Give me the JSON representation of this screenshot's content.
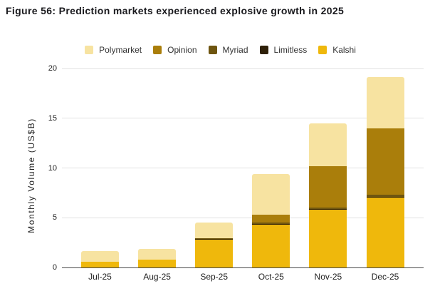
{
  "figure": {
    "title": "Figure 56: Prediction markets experienced explosive growth in 2025"
  },
  "chart_data": {
    "type": "bar",
    "stacked": true,
    "title": "Figure 56: Prediction markets experienced explosive growth in 2025",
    "categories": [
      "Jul-25",
      "Aug-25",
      "Sep-25",
      "Oct-25",
      "Nov-25",
      "Dec-25"
    ],
    "series": [
      {
        "name": "Polymarket",
        "color": "#f7e3a1",
        "values": [
          1.07,
          1.07,
          1.6,
          4.1,
          4.3,
          5.2
        ]
      },
      {
        "name": "Opinion",
        "color": "#aa7e0b",
        "values": [
          0,
          0,
          0,
          0.8,
          4.15,
          6.65
        ]
      },
      {
        "name": "Myriad",
        "color": "#6e5510",
        "values": [
          0,
          0,
          0.05,
          0.1,
          0.15,
          0.2
        ]
      },
      {
        "name": "Limitless",
        "color": "#2e2008",
        "values": [
          0,
          0,
          0.05,
          0.1,
          0.1,
          0.1
        ]
      },
      {
        "name": "Kalshi",
        "color": "#efb80c",
        "values": [
          0.6,
          0.8,
          2.85,
          4.3,
          5.8,
          7.0
        ]
      }
    ],
    "stack_order_bottom_to_top": [
      "Kalshi",
      "Limitless",
      "Myriad",
      "Opinion",
      "Polymarket"
    ],
    "xlabel": "",
    "ylabel": "Monthly Volume (US$B)",
    "ylim": [
      0,
      20
    ],
    "yticks": [
      0,
      5,
      10,
      15,
      20
    ],
    "legend_position": "top-center",
    "grid": "horizontal"
  },
  "colors": {
    "background": "#ffffff",
    "title_text": "#19191d",
    "axis_text": "#1f1f1f",
    "legend_text": "#333333",
    "gridline": "#e2e2e2",
    "axis_line": "#4a4a4a"
  }
}
